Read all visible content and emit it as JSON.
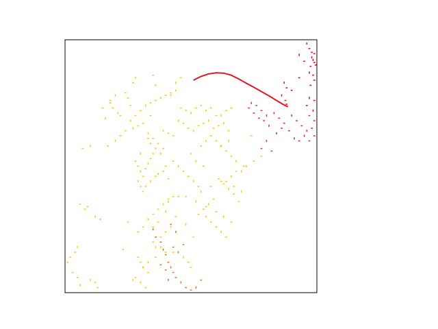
{
  "chart_data": {
    "type": "scatter",
    "xlim": [
      0,
      1
    ],
    "ylim": [
      0,
      1
    ],
    "axes_visible": false,
    "grid": false,
    "legend": "none",
    "colors": {
      "red": "#e8121e",
      "pink": "#ee2a5c",
      "orange": "#f97316",
      "yellow": "#facc15"
    },
    "series": [
      {
        "color_key": "red",
        "kind": "curve",
        "x": [
          0.51,
          0.54,
          0.57,
          0.6,
          0.63,
          0.66,
          0.69,
          0.72,
          0.75,
          0.78,
          0.81,
          0.84,
          0.865,
          0.885
        ],
        "y": [
          0.84,
          0.855,
          0.865,
          0.869,
          0.868,
          0.86,
          0.845,
          0.828,
          0.812,
          0.795,
          0.778,
          0.76,
          0.745,
          0.735
        ]
      },
      {
        "color_key": "red",
        "kind": "scatter",
        "x": [
          0.96,
          0.97,
          0.98,
          0.985,
          0.99,
          0.995,
          0.93,
          0.95,
          0.975,
          0.97,
          0.985,
          0.99,
          0.87,
          0.88,
          0.9,
          0.86,
          0.875,
          0.88,
          0.97,
          0.99,
          0.96,
          0.985,
          0.93,
          0.99,
          0.98,
          0.975
        ],
        "y": [
          0.985,
          0.965,
          0.95,
          0.92,
          0.91,
          0.9,
          0.94,
          0.915,
          0.895,
          0.87,
          0.86,
          0.84,
          0.83,
          0.81,
          0.8,
          0.78,
          0.76,
          0.745,
          0.77,
          0.76,
          0.74,
          0.72,
          0.85,
          0.945,
          0.93,
          0.82
        ]
      },
      {
        "color_key": "pink",
        "kind": "scatter",
        "x": [
          0.74,
          0.76,
          0.78,
          0.8,
          0.77,
          0.79,
          0.81,
          0.73,
          0.75,
          0.83,
          0.85,
          0.87,
          0.9,
          0.92,
          0.94,
          0.96,
          0.98,
          0.99,
          0.95,
          0.97,
          0.93,
          0.91,
          0.89,
          0.86,
          0.84,
          0.99,
          0.97,
          0.8,
          0.78,
          0.82
        ],
        "y": [
          0.75,
          0.74,
          0.72,
          0.7,
          0.69,
          0.68,
          0.66,
          0.73,
          0.71,
          0.71,
          0.69,
          0.67,
          0.7,
          0.68,
          0.66,
          0.64,
          0.65,
          0.62,
          0.62,
          0.6,
          0.6,
          0.61,
          0.64,
          0.65,
          0.63,
          0.68,
          0.7,
          0.6,
          0.57,
          0.56
        ]
      },
      {
        "color_key": "yellow",
        "kind": "scatter",
        "x": [
          0.26,
          0.28,
          0.3,
          0.32,
          0.34,
          0.36,
          0.38,
          0.4,
          0.42,
          0.44,
          0.46,
          0.48,
          0.5,
          0.52,
          0.54,
          0.56,
          0.58,
          0.6,
          0.62,
          0.64,
          0.66,
          0.33,
          0.35,
          0.37,
          0.39,
          0.41,
          0.43,
          0.45,
          0.47,
          0.49,
          0.51,
          0.53,
          0.55,
          0.57,
          0.59,
          0.61,
          0.63,
          0.65,
          0.17,
          0.2,
          0.22,
          0.24,
          0.27,
          0.29,
          0.31,
          0.3,
          0.28,
          0.29,
          0.3,
          0.32,
          0.31,
          0.29,
          0.3,
          0.31,
          0.33,
          0.34,
          0.35,
          0.36,
          0.34,
          0.33,
          0.38,
          0.39,
          0.4,
          0.37,
          0.41,
          0.43,
          0.45,
          0.47,
          0.49,
          0.51,
          0.53,
          0.55,
          0.52,
          0.5,
          0.54,
          0.56,
          0.58,
          0.6,
          0.62,
          0.64,
          0.66,
          0.68,
          0.61,
          0.63,
          0.65,
          0.67,
          0.59,
          0.57,
          0.55,
          0.53,
          0.56,
          0.58,
          0.6,
          0.62,
          0.64,
          0.07,
          0.1,
          0.06,
          0.08,
          0.12,
          0.14,
          0.09,
          0.05,
          0.04,
          0.02,
          0.01,
          0.03,
          0.05,
          0.1,
          0.12,
          0.13,
          0.06,
          0.29,
          0.3,
          0.31,
          0.33,
          0.28,
          0.3,
          0.32,
          0.35,
          0.36,
          0.38,
          0.4,
          0.42,
          0.31,
          0.29,
          0.33,
          0.35,
          0.37,
          0.39,
          0.41,
          0.43,
          0.47,
          0.49,
          0.5,
          0.27,
          0.45,
          0.51,
          0.48,
          0.23,
          0.25,
          0.72,
          0.75,
          0.78,
          0.7,
          0.74,
          0.62,
          0.65,
          0.15,
          0.19,
          0.21,
          0.18,
          0.25,
          0.16,
          0.24,
          0.34,
          0.42,
          0.36,
          0.26,
          0.44,
          0.46,
          0.27,
          0.28,
          0.35,
          0.22,
          0.2,
          0.18,
          0.48,
          0.52,
          0.56,
          0.6,
          0.63,
          0.66,
          0.69,
          0.7,
          0.67,
          0.64,
          0.54,
          0.58,
          0.62,
          0.66,
          0.68,
          0.71,
          0.38,
          0.4,
          0.36,
          0.33,
          0.31,
          0.32,
          0.34,
          0.36,
          0.39,
          0.41,
          0.43,
          0.44,
          0.4,
          0.37,
          0.35
        ],
        "y": [
          0.68,
          0.7,
          0.72,
          0.74,
          0.75,
          0.76,
          0.77,
          0.78,
          0.79,
          0.8,
          0.73,
          0.72,
          0.71,
          0.73,
          0.74,
          0.72,
          0.73,
          0.7,
          0.7,
          0.72,
          0.73,
          0.63,
          0.61,
          0.59,
          0.64,
          0.63,
          0.62,
          0.68,
          0.67,
          0.65,
          0.64,
          0.66,
          0.67,
          0.68,
          0.65,
          0.66,
          0.67,
          0.64,
          0.58,
          0.6,
          0.62,
          0.64,
          0.65,
          0.66,
          0.67,
          0.55,
          0.52,
          0.5,
          0.48,
          0.49,
          0.46,
          0.44,
          0.42,
          0.4,
          0.51,
          0.53,
          0.55,
          0.57,
          0.59,
          0.61,
          0.55,
          0.57,
          0.5,
          0.47,
          0.45,
          0.52,
          0.5,
          0.48,
          0.46,
          0.44,
          0.42,
          0.5,
          0.52,
          0.55,
          0.58,
          0.6,
          0.62,
          0.6,
          0.58,
          0.56,
          0.54,
          0.52,
          0.45,
          0.43,
          0.41,
          0.39,
          0.37,
          0.35,
          0.33,
          0.31,
          0.3,
          0.28,
          0.26,
          0.24,
          0.22,
          0.57,
          0.58,
          0.35,
          0.33,
          0.3,
          0.29,
          0.34,
          0.18,
          0.16,
          0.14,
          0.12,
          0.08,
          0.06,
          0.05,
          0.04,
          0.02,
          0.03,
          0.14,
          0.12,
          0.1,
          0.08,
          0.06,
          0.04,
          0.02,
          0.2,
          0.18,
          0.22,
          0.24,
          0.26,
          0.26,
          0.24,
          0.29,
          0.31,
          0.33,
          0.35,
          0.37,
          0.16,
          0.14,
          0.12,
          0.1,
          0.05,
          0.38,
          0.22,
          0.27,
          0.17,
          0.28,
          0.5,
          0.52,
          0.54,
          0.48,
          0.62,
          0.58,
          0.6,
          0.73,
          0.73,
          0.71,
          0.75,
          0.77,
          0.69,
          0.79,
          0.7,
          0.78,
          0.82,
          0.74,
          0.83,
          0.85,
          0.83,
          0.85,
          0.86,
          0.7,
          0.78,
          0.76,
          0.38,
          0.36,
          0.34,
          0.32,
          0.3,
          0.28,
          0.36,
          0.4,
          0.42,
          0.44,
          0.4,
          0.42,
          0.44,
          0.46,
          0.48,
          0.5,
          0.18,
          0.16,
          0.14,
          0.12,
          0.1,
          0.42,
          0.44,
          0.46,
          0.48,
          0.36,
          0.38,
          0.3,
          0.32,
          0.28,
          0.26
        ]
      },
      {
        "color_key": "orange",
        "kind": "scatter",
        "x": [
          0.35,
          0.36,
          0.38,
          0.39,
          0.4,
          0.41,
          0.42,
          0.43,
          0.44,
          0.46,
          0.48,
          0.5,
          0.52,
          0.54,
          0.43,
          0.45,
          0.47,
          0.42,
          0.44,
          0.38,
          0.4,
          0.41
        ],
        "y": [
          0.25,
          0.22,
          0.2,
          0.17,
          0.15,
          0.12,
          0.1,
          0.08,
          0.06,
          0.04,
          0.02,
          0.01,
          0.02,
          0.05,
          0.18,
          0.16,
          0.19,
          0.27,
          0.24,
          0.11,
          0.09,
          0.05
        ]
      }
    ]
  }
}
